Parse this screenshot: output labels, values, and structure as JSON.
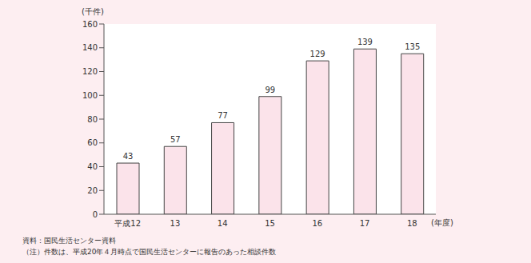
{
  "chart_data": {
    "type": "bar",
    "y_label": "(千件)",
    "x_label": "(年度)",
    "categories": [
      "平成12",
      "13",
      "14",
      "15",
      "16",
      "17",
      "18"
    ],
    "values": [
      43,
      57,
      77,
      99,
      129,
      139,
      135
    ],
    "color": "#fbe3ea",
    "ylim": [
      0,
      160
    ],
    "yticks": [
      0,
      20,
      40,
      60,
      80,
      100,
      120,
      140,
      160
    ],
    "grid": false,
    "data_labels": true,
    "annotations": [
      "資料：国民生活センター資料",
      "（注）件数は、平成20年４月時点で国民生活センターに報告のあった相談件数"
    ]
  }
}
